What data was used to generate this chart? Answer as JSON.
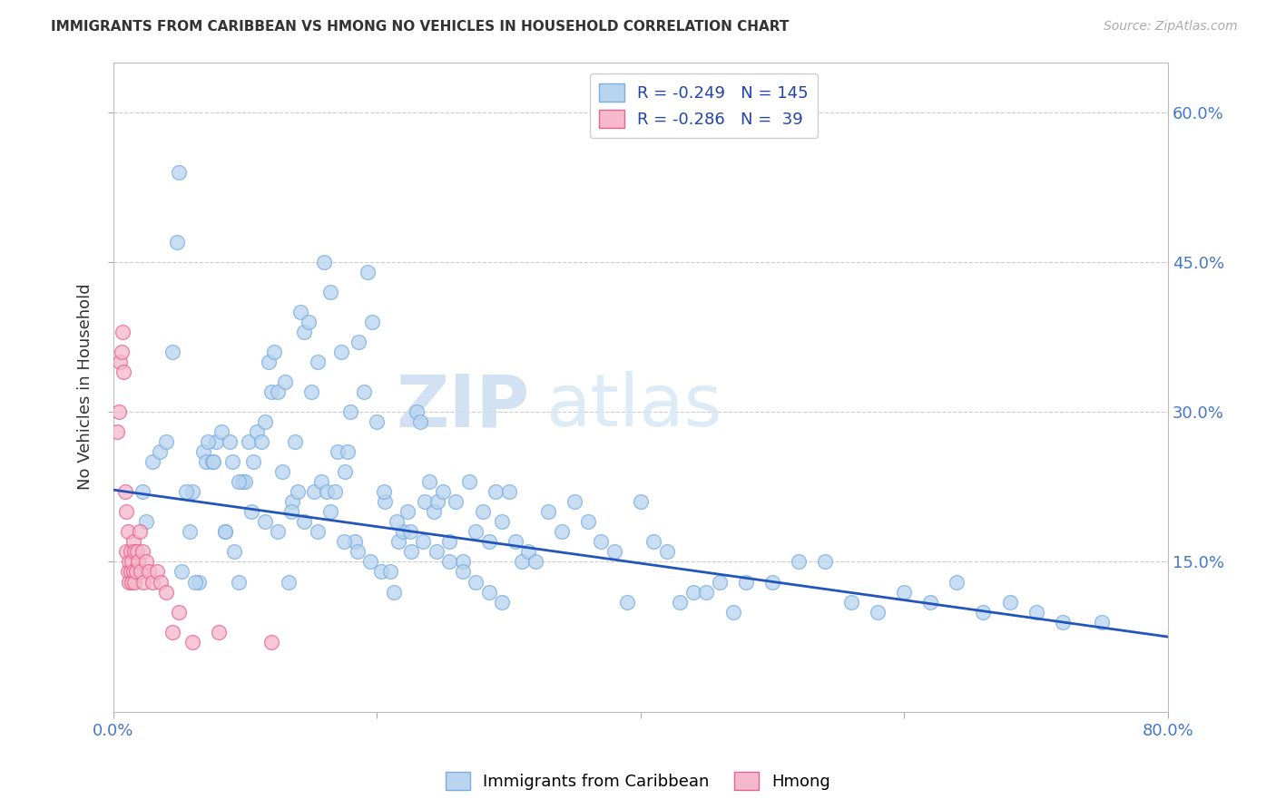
{
  "title": "IMMIGRANTS FROM CARIBBEAN VS HMONG NO VEHICLES IN HOUSEHOLD CORRELATION CHART",
  "source": "Source: ZipAtlas.com",
  "ylabel": "No Vehicles in Household",
  "xlim": [
    0.0,
    0.8
  ],
  "ylim": [
    0.0,
    0.65
  ],
  "xtick_positions": [
    0.0,
    0.2,
    0.4,
    0.6,
    0.8
  ],
  "xticklabels": [
    "0.0%",
    "",
    "",
    "",
    "80.0%"
  ],
  "ytick_positions": [
    0.15,
    0.3,
    0.45,
    0.6
  ],
  "ytick_labels": [
    "15.0%",
    "30.0%",
    "45.0%",
    "60.0%"
  ],
  "caribbean_color": "#b8d4ee",
  "caribbean_edge": "#7aade0",
  "hmong_color": "#f5b8cc",
  "hmong_edge": "#e8648c",
  "trend_color": "#2255bb",
  "legend_r1": "R = -0.249",
  "legend_n1": "N = 145",
  "legend_r2": "R = -0.286",
  "legend_n2": "N =  39",
  "legend_label1": "Immigrants from Caribbean",
  "legend_label2": "Hmong",
  "watermark_zip": "ZIP",
  "watermark_atlas": "atlas",
  "trend_x0": 0.0,
  "trend_x1": 0.8,
  "trend_y0": 0.222,
  "trend_y1": 0.075,
  "background_color": "#ffffff",
  "grid_color": "#cccccc",
  "caribbean_x": [
    0.022,
    0.05,
    0.06,
    0.065,
    0.068,
    0.07,
    0.075,
    0.078,
    0.082,
    0.085,
    0.088,
    0.09,
    0.092,
    0.095,
    0.098,
    0.1,
    0.103,
    0.106,
    0.109,
    0.112,
    0.115,
    0.118,
    0.12,
    0.122,
    0.125,
    0.128,
    0.13,
    0.133,
    0.136,
    0.138,
    0.14,
    0.142,
    0.145,
    0.148,
    0.15,
    0.152,
    0.155,
    0.158,
    0.16,
    0.162,
    0.165,
    0.168,
    0.17,
    0.173,
    0.176,
    0.178,
    0.18,
    0.183,
    0.186,
    0.19,
    0.193,
    0.196,
    0.2,
    0.203,
    0.206,
    0.21,
    0.213,
    0.216,
    0.22,
    0.223,
    0.226,
    0.23,
    0.233,
    0.236,
    0.24,
    0.243,
    0.246,
    0.25,
    0.255,
    0.26,
    0.265,
    0.27,
    0.275,
    0.28,
    0.285,
    0.29,
    0.295,
    0.3,
    0.305,
    0.31,
    0.315,
    0.32,
    0.33,
    0.34,
    0.35,
    0.36,
    0.37,
    0.38,
    0.39,
    0.4,
    0.41,
    0.42,
    0.43,
    0.44,
    0.45,
    0.46,
    0.47,
    0.48,
    0.5,
    0.52,
    0.54,
    0.56,
    0.58,
    0.6,
    0.62,
    0.64,
    0.66,
    0.68,
    0.7,
    0.72,
    0.025,
    0.03,
    0.035,
    0.04,
    0.045,
    0.048,
    0.052,
    0.055,
    0.058,
    0.062,
    0.072,
    0.076,
    0.085,
    0.095,
    0.105,
    0.115,
    0.125,
    0.135,
    0.145,
    0.155,
    0.165,
    0.175,
    0.185,
    0.195,
    0.205,
    0.215,
    0.225,
    0.235,
    0.245,
    0.255,
    0.265,
    0.275,
    0.285,
    0.295,
    0.75
  ],
  "caribbean_y": [
    0.22,
    0.54,
    0.22,
    0.13,
    0.26,
    0.25,
    0.25,
    0.27,
    0.28,
    0.18,
    0.27,
    0.25,
    0.16,
    0.13,
    0.23,
    0.23,
    0.27,
    0.25,
    0.28,
    0.27,
    0.29,
    0.35,
    0.32,
    0.36,
    0.32,
    0.24,
    0.33,
    0.13,
    0.21,
    0.27,
    0.22,
    0.4,
    0.38,
    0.39,
    0.32,
    0.22,
    0.35,
    0.23,
    0.45,
    0.22,
    0.42,
    0.22,
    0.26,
    0.36,
    0.24,
    0.26,
    0.3,
    0.17,
    0.37,
    0.32,
    0.44,
    0.39,
    0.29,
    0.14,
    0.21,
    0.14,
    0.12,
    0.17,
    0.18,
    0.2,
    0.16,
    0.3,
    0.29,
    0.21,
    0.23,
    0.2,
    0.21,
    0.22,
    0.17,
    0.21,
    0.15,
    0.23,
    0.18,
    0.2,
    0.17,
    0.22,
    0.19,
    0.22,
    0.17,
    0.15,
    0.16,
    0.15,
    0.2,
    0.18,
    0.21,
    0.19,
    0.17,
    0.16,
    0.11,
    0.21,
    0.17,
    0.16,
    0.11,
    0.12,
    0.12,
    0.13,
    0.1,
    0.13,
    0.13,
    0.15,
    0.15,
    0.11,
    0.1,
    0.12,
    0.11,
    0.13,
    0.1,
    0.11,
    0.1,
    0.09,
    0.19,
    0.25,
    0.26,
    0.27,
    0.36,
    0.47,
    0.14,
    0.22,
    0.18,
    0.13,
    0.27,
    0.25,
    0.18,
    0.23,
    0.2,
    0.19,
    0.18,
    0.2,
    0.19,
    0.18,
    0.2,
    0.17,
    0.16,
    0.15,
    0.22,
    0.19,
    0.18,
    0.17,
    0.16,
    0.15,
    0.14,
    0.13,
    0.12,
    0.11,
    0.09
  ],
  "hmong_x": [
    0.003,
    0.004,
    0.005,
    0.006,
    0.007,
    0.008,
    0.009,
    0.01,
    0.01,
    0.011,
    0.011,
    0.012,
    0.012,
    0.013,
    0.013,
    0.014,
    0.014,
    0.015,
    0.015,
    0.016,
    0.016,
    0.017,
    0.018,
    0.019,
    0.02,
    0.021,
    0.022,
    0.023,
    0.025,
    0.027,
    0.03,
    0.033,
    0.036,
    0.04,
    0.045,
    0.05,
    0.06,
    0.08,
    0.12
  ],
  "hmong_y": [
    0.28,
    0.3,
    0.35,
    0.36,
    0.38,
    0.34,
    0.22,
    0.2,
    0.16,
    0.14,
    0.18,
    0.15,
    0.13,
    0.16,
    0.14,
    0.15,
    0.13,
    0.14,
    0.17,
    0.13,
    0.16,
    0.14,
    0.16,
    0.15,
    0.18,
    0.14,
    0.16,
    0.13,
    0.15,
    0.14,
    0.13,
    0.14,
    0.13,
    0.12,
    0.08,
    0.1,
    0.07,
    0.08,
    0.07
  ]
}
